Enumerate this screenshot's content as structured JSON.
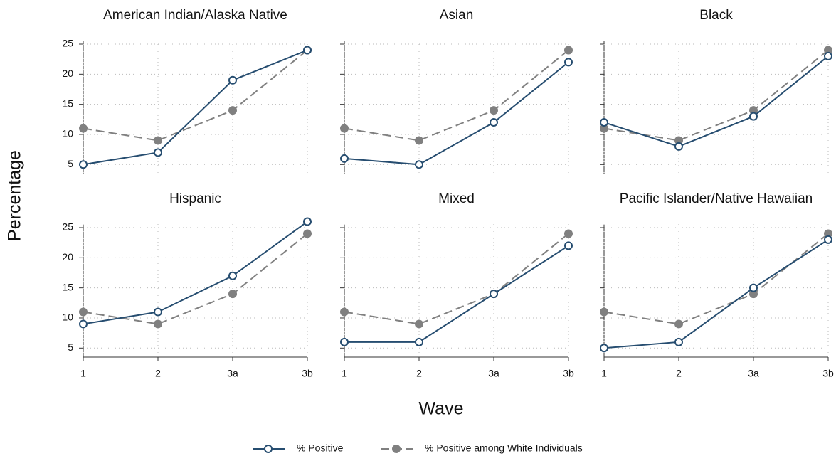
{
  "ylabel": "Percentage",
  "xlabel": "Wave",
  "chart_data": [
    {
      "type": "line",
      "title": "American Indian/Alaska Native",
      "categories": [
        "1",
        "2",
        "3a",
        "3b"
      ],
      "ylim": [
        3.5,
        25
      ],
      "yticks": [
        5,
        10,
        15,
        20,
        25
      ],
      "grid": true,
      "series": [
        {
          "name": "% Positive",
          "color": "#264d70",
          "linestyle": "solid",
          "marker": "open",
          "values": [
            5,
            7,
            19,
            24
          ]
        },
        {
          "name": "% Positive among White Individuals",
          "color": "#808080",
          "linestyle": "dashed",
          "marker": "filled",
          "values": [
            11,
            9,
            14,
            24
          ]
        }
      ]
    },
    {
      "type": "line",
      "title": "Asian",
      "categories": [
        "1",
        "2",
        "3a",
        "3b"
      ],
      "ylim": [
        3.5,
        25
      ],
      "yticks": [
        5,
        10,
        15,
        20,
        25
      ],
      "grid": true,
      "series": [
        {
          "name": "% Positive",
          "color": "#264d70",
          "linestyle": "solid",
          "marker": "open",
          "values": [
            6,
            5,
            12,
            22
          ]
        },
        {
          "name": "% Positive among White Individuals",
          "color": "#808080",
          "linestyle": "dashed",
          "marker": "filled",
          "values": [
            11,
            9,
            14,
            24
          ]
        }
      ]
    },
    {
      "type": "line",
      "title": "Black",
      "categories": [
        "1",
        "2",
        "3a",
        "3b"
      ],
      "ylim": [
        3.5,
        25
      ],
      "yticks": [
        5,
        10,
        15,
        20,
        25
      ],
      "grid": true,
      "series": [
        {
          "name": "% Positive",
          "color": "#264d70",
          "linestyle": "solid",
          "marker": "open",
          "values": [
            12,
            8,
            13,
            23
          ]
        },
        {
          "name": "% Positive among White Individuals",
          "color": "#808080",
          "linestyle": "dashed",
          "marker": "filled",
          "values": [
            11,
            9,
            14,
            24
          ]
        }
      ]
    },
    {
      "type": "line",
      "title": "Hispanic",
      "categories": [
        "1",
        "2",
        "3a",
        "3b"
      ],
      "ylim": [
        3.5,
        25
      ],
      "yticks": [
        5,
        10,
        15,
        20,
        25
      ],
      "grid": true,
      "series": [
        {
          "name": "% Positive",
          "color": "#264d70",
          "linestyle": "solid",
          "marker": "open",
          "values": [
            9,
            11,
            17,
            26
          ]
        },
        {
          "name": "% Positive among White Individuals",
          "color": "#808080",
          "linestyle": "dashed",
          "marker": "filled",
          "values": [
            11,
            9,
            14,
            24
          ]
        }
      ]
    },
    {
      "type": "line",
      "title": "Mixed",
      "categories": [
        "1",
        "2",
        "3a",
        "3b"
      ],
      "ylim": [
        3.5,
        25
      ],
      "yticks": [
        5,
        10,
        15,
        20,
        25
      ],
      "grid": true,
      "series": [
        {
          "name": "% Positive",
          "color": "#264d70",
          "linestyle": "solid",
          "marker": "open",
          "values": [
            6,
            6,
            14,
            22
          ]
        },
        {
          "name": "% Positive among White Individuals",
          "color": "#808080",
          "linestyle": "dashed",
          "marker": "filled",
          "values": [
            11,
            9,
            14,
            24
          ]
        }
      ]
    },
    {
      "type": "line",
      "title": "Pacific Islander/Native Hawaiian",
      "categories": [
        "1",
        "2",
        "3a",
        "3b"
      ],
      "ylim": [
        3.5,
        25
      ],
      "yticks": [
        5,
        10,
        15,
        20,
        25
      ],
      "grid": true,
      "series": [
        {
          "name": "% Positive",
          "color": "#264d70",
          "linestyle": "solid",
          "marker": "open",
          "values": [
            5,
            6,
            15,
            23
          ]
        },
        {
          "name": "% Positive among White Individuals",
          "color": "#808080",
          "linestyle": "dashed",
          "marker": "filled",
          "values": [
            11,
            9,
            14,
            24
          ]
        }
      ]
    }
  ]
}
